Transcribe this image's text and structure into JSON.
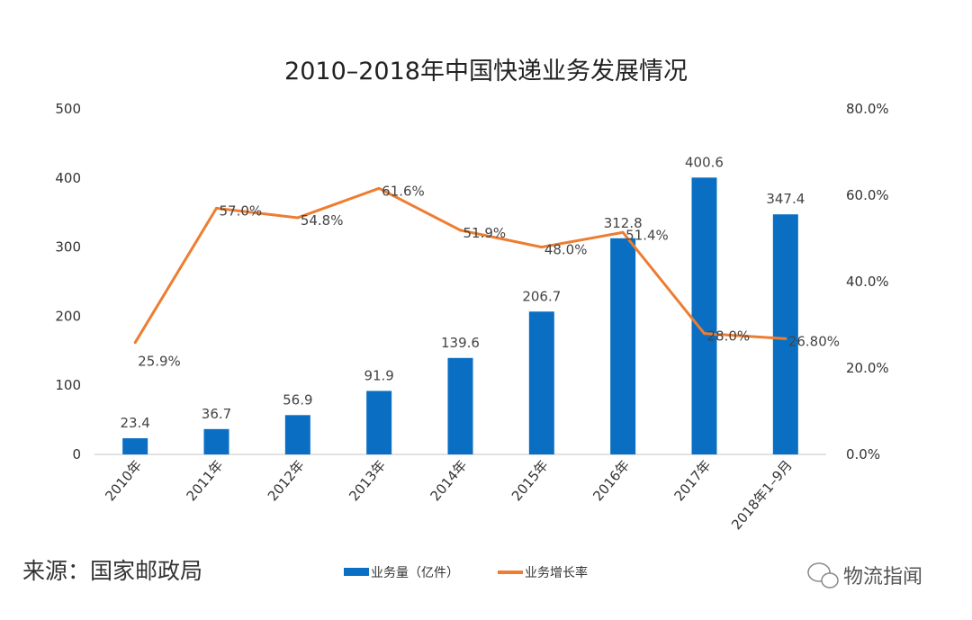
{
  "chart_data": {
    "type": "bar+line",
    "title": "2010–2018年中国快递业务发展情况",
    "categories": [
      "2010年",
      "2011年",
      "2012年",
      "2013年",
      "2014年",
      "2015年",
      "2016年",
      "2017年",
      "2018年1–9月"
    ],
    "series": [
      {
        "name": "业务量（亿件）",
        "type": "bar",
        "axis": "left",
        "color": "#0A6FC2",
        "values": [
          23.4,
          36.7,
          56.9,
          91.9,
          139.6,
          206.7,
          312.8,
          400.6,
          347.4
        ],
        "labels": [
          "23.4",
          "36.7",
          "56.9",
          "91.9",
          "139.6",
          "206.7",
          "312.8",
          "400.6",
          "347.4"
        ]
      },
      {
        "name": "业务增长率",
        "type": "line",
        "axis": "right",
        "color": "#ED7D31",
        "values": [
          25.9,
          57.0,
          54.8,
          61.6,
          51.9,
          48.0,
          51.4,
          28.0,
          26.8
        ],
        "labels": [
          "25.9%",
          "57.0%",
          "54.8%",
          "61.6%",
          "51.9%",
          "48.0%",
          "51.4%",
          "28.0%",
          "26.80%"
        ]
      }
    ],
    "ylim_left": [
      0,
      500
    ],
    "yticks_left": [
      "0",
      "100",
      "200",
      "300",
      "400",
      "500"
    ],
    "ylim_right": [
      0,
      80
    ],
    "yticks_right": [
      "0.0%",
      "20.0%",
      "40.0%",
      "60.0%",
      "80.0%"
    ],
    "grid": false,
    "legend": "bottom"
  },
  "source": "来源：国家邮政局",
  "watermark": "物流指闻"
}
